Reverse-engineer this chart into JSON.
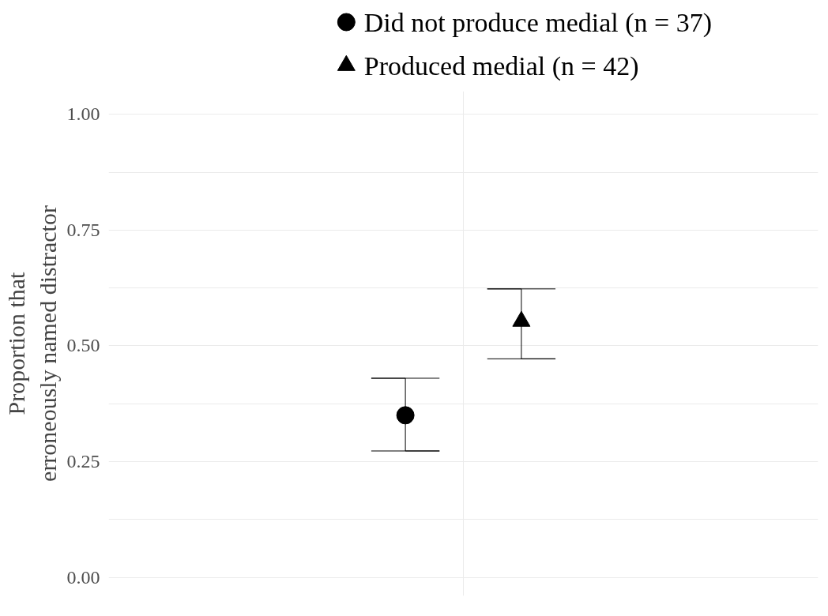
{
  "chart_data": {
    "type": "scatter",
    "ylabel": "Proportion that\nerroneously named distractor",
    "categories": [
      null
    ],
    "series": [
      {
        "name": "Did not produce medial (n = 37)",
        "color": "#000000",
        "marker": "circle",
        "values": [
          0.35
        ],
        "errors": [
          [
            0.273,
            0.43
          ]
        ]
      },
      {
        "name": "Produced medial (n = 42)",
        "color": "#000000",
        "marker": "triangle",
        "values": [
          0.553
        ],
        "errors": [
          [
            0.472,
            0.623
          ]
        ]
      }
    ],
    "ylim": [
      -0.04,
      1.05
    ],
    "yticks": [
      {
        "value": 0,
        "label": "0.00"
      },
      {
        "value": 0.25,
        "label": "0.25"
      },
      {
        "value": 0.5,
        "label": "0.50"
      },
      {
        "value": 0.75,
        "label": "0.75"
      },
      {
        "value": 1,
        "label": "1.00"
      }
    ],
    "grid": true,
    "legend": "top"
  }
}
